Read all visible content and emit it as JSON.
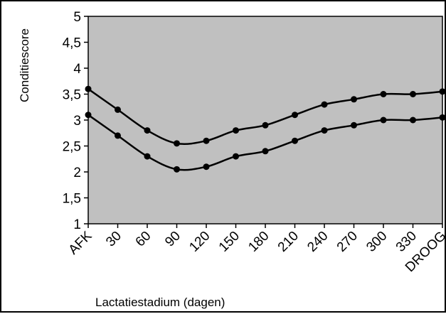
{
  "chart_data": {
    "type": "line",
    "title": "",
    "xlabel": "Lactatiestadium (dagen)",
    "ylabel": "Conditiescore",
    "categories": [
      "AFK",
      "30",
      "60",
      "90",
      "120",
      "150",
      "180",
      "210",
      "240",
      "270",
      "300",
      "330",
      "DROOG"
    ],
    "ylim": [
      1,
      5
    ],
    "yticks": [
      "1",
      "1,5",
      "2",
      "2,5",
      "3",
      "3,5",
      "4",
      "4,5",
      "5"
    ],
    "grid": false,
    "legend": "none",
    "plot_background": "#c0c0c0",
    "line_color": "#000000",
    "series": [
      {
        "values": [
          3.6,
          3.2,
          2.8,
          2.55,
          2.6,
          2.8,
          2.9,
          3.1,
          3.3,
          3.4,
          3.5,
          3.5,
          3.55
        ]
      },
      {
        "values": [
          3.1,
          2.7,
          2.3,
          2.05,
          2.1,
          2.3,
          2.4,
          2.6,
          2.8,
          2.9,
          3.0,
          3.0,
          3.05
        ]
      }
    ]
  }
}
